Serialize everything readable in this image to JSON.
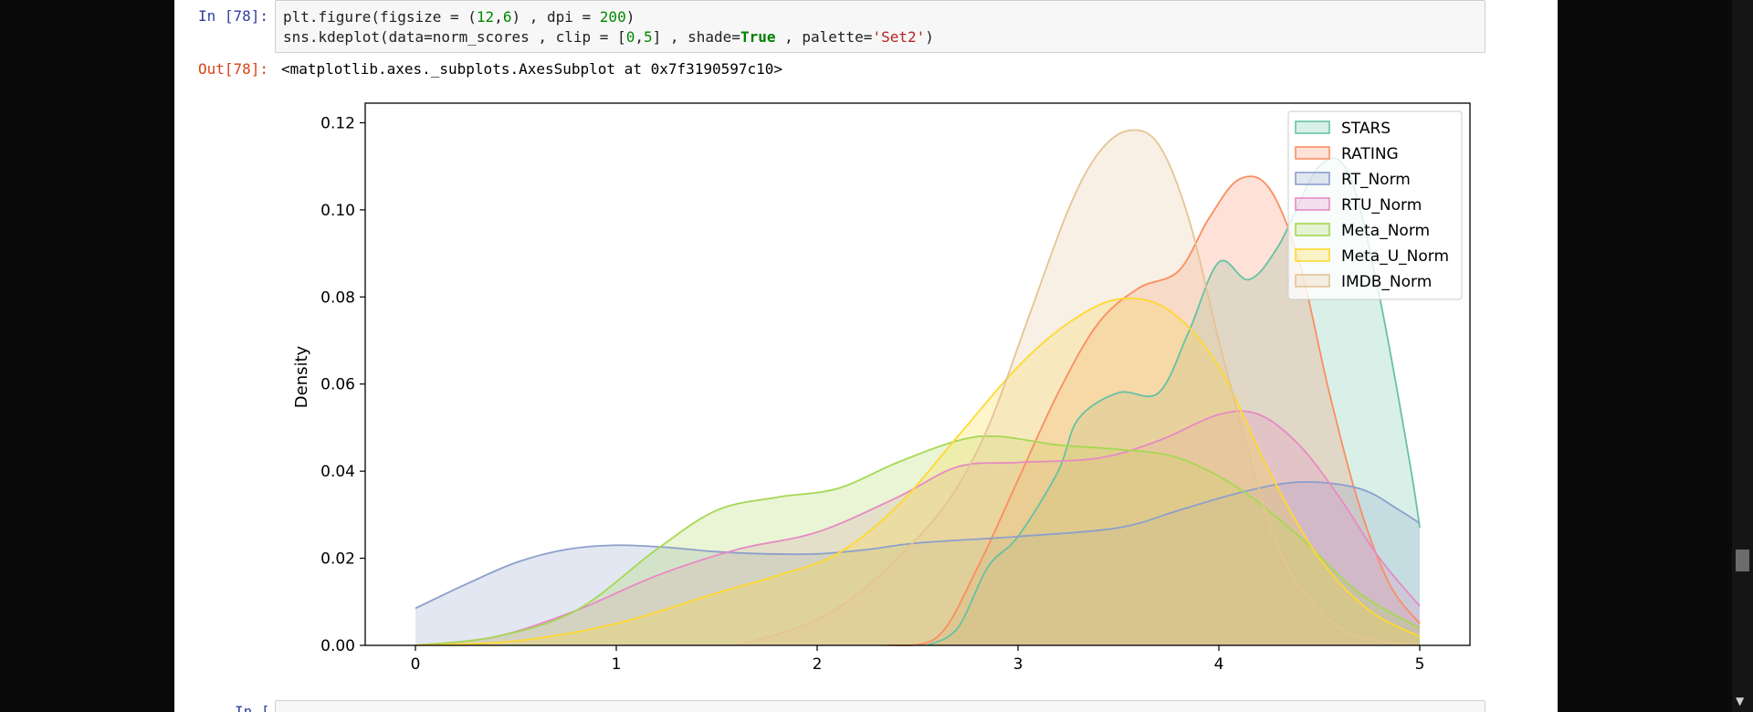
{
  "cell_in": {
    "prompt": "In [78]:",
    "line1": {
      "p1": "plt.figure(figsize = (",
      "n1": "12",
      "p2": ",",
      "n2": "6",
      "p3": ") , dpi = ",
      "n3": "200",
      "p4": ")"
    },
    "line2": {
      "p1": "sns.kdeplot(data=norm_scores , clip = [",
      "n1": "0",
      "p2": ",",
      "n2": "5",
      "p3": "] , shade=",
      "kw": "True",
      "p4": " , palette=",
      "str": "'Set2'",
      "p5": ")"
    }
  },
  "cell_out": {
    "prompt": "Out[78]:",
    "text": "<matplotlib.axes._subplots.AxesSubplot at 0x7f3190597c10>"
  },
  "next_cell": {
    "prompt": "In [ ]:"
  },
  "chart_data": {
    "type": "area",
    "ylabel": "Density",
    "xlim": [
      -0.25,
      5.25
    ],
    "ylim": [
      0,
      0.1245
    ],
    "xticks": [
      "0",
      "1",
      "2",
      "3",
      "4",
      "5"
    ],
    "yticks": [
      "0.00",
      "0.02",
      "0.04",
      "0.06",
      "0.08",
      "0.10",
      "0.12"
    ],
    "legend_position": "top-right",
    "series": [
      {
        "name": "STARS",
        "color": "#66c2a5",
        "points": [
          [
            2.55,
            0
          ],
          [
            2.7,
            0.004
          ],
          [
            2.85,
            0.018
          ],
          [
            3.0,
            0.025
          ],
          [
            3.2,
            0.04
          ],
          [
            3.3,
            0.052
          ],
          [
            3.5,
            0.058
          ],
          [
            3.7,
            0.058
          ],
          [
            3.85,
            0.072
          ],
          [
            4.0,
            0.088
          ],
          [
            4.15,
            0.084
          ],
          [
            4.3,
            0.092
          ],
          [
            4.5,
            0.11
          ],
          [
            4.65,
            0.108
          ],
          [
            4.8,
            0.08
          ],
          [
            4.95,
            0.042
          ],
          [
            5.0,
            0.027
          ]
        ]
      },
      {
        "name": "RATING",
        "color": "#fc8d62",
        "points": [
          [
            2.35,
            0
          ],
          [
            2.6,
            0.002
          ],
          [
            2.8,
            0.018
          ],
          [
            3.0,
            0.038
          ],
          [
            3.2,
            0.058
          ],
          [
            3.4,
            0.074
          ],
          [
            3.6,
            0.082
          ],
          [
            3.8,
            0.086
          ],
          [
            3.95,
            0.098
          ],
          [
            4.1,
            0.107
          ],
          [
            4.25,
            0.105
          ],
          [
            4.4,
            0.088
          ],
          [
            4.55,
            0.058
          ],
          [
            4.7,
            0.032
          ],
          [
            4.85,
            0.014
          ],
          [
            5.0,
            0.005
          ]
        ]
      },
      {
        "name": "RT_Norm",
        "color": "#8da0cb",
        "points": [
          [
            0.0,
            0.0085
          ],
          [
            0.25,
            0.014
          ],
          [
            0.5,
            0.019
          ],
          [
            0.75,
            0.022
          ],
          [
            1.0,
            0.023
          ],
          [
            1.25,
            0.0225
          ],
          [
            1.5,
            0.0215
          ],
          [
            1.75,
            0.021
          ],
          [
            2.0,
            0.021
          ],
          [
            2.25,
            0.022
          ],
          [
            2.5,
            0.0235
          ],
          [
            3.0,
            0.025
          ],
          [
            3.5,
            0.027
          ],
          [
            3.8,
            0.031
          ],
          [
            4.1,
            0.035
          ],
          [
            4.4,
            0.0375
          ],
          [
            4.7,
            0.036
          ],
          [
            4.9,
            0.031
          ],
          [
            5.0,
            0.028
          ]
        ]
      },
      {
        "name": "RTU_Norm",
        "color": "#e78ac3",
        "points": [
          [
            0.0,
            0.0
          ],
          [
            0.4,
            0.002
          ],
          [
            0.8,
            0.008
          ],
          [
            1.2,
            0.016
          ],
          [
            1.6,
            0.022
          ],
          [
            2.0,
            0.026
          ],
          [
            2.4,
            0.034
          ],
          [
            2.7,
            0.041
          ],
          [
            3.0,
            0.042
          ],
          [
            3.4,
            0.043
          ],
          [
            3.7,
            0.047
          ],
          [
            4.0,
            0.053
          ],
          [
            4.2,
            0.053
          ],
          [
            4.4,
            0.046
          ],
          [
            4.6,
            0.034
          ],
          [
            4.8,
            0.02
          ],
          [
            5.0,
            0.009
          ]
        ]
      },
      {
        "name": "Meta_Norm",
        "color": "#a6d854",
        "points": [
          [
            0.0,
            0.0
          ],
          [
            0.4,
            0.002
          ],
          [
            0.8,
            0.008
          ],
          [
            1.2,
            0.022
          ],
          [
            1.5,
            0.031
          ],
          [
            1.8,
            0.034
          ],
          [
            2.1,
            0.036
          ],
          [
            2.4,
            0.042
          ],
          [
            2.7,
            0.047
          ],
          [
            2.9,
            0.048
          ],
          [
            3.2,
            0.046
          ],
          [
            3.5,
            0.045
          ],
          [
            3.8,
            0.043
          ],
          [
            4.1,
            0.036
          ],
          [
            4.4,
            0.025
          ],
          [
            4.7,
            0.012
          ],
          [
            5.0,
            0.004
          ]
        ]
      },
      {
        "name": "Meta_U_Norm",
        "color": "#ffd92f",
        "points": [
          [
            0.0,
            0.0
          ],
          [
            0.5,
            0.001
          ],
          [
            1.0,
            0.005
          ],
          [
            1.5,
            0.012
          ],
          [
            1.8,
            0.016
          ],
          [
            2.1,
            0.021
          ],
          [
            2.4,
            0.032
          ],
          [
            2.7,
            0.048
          ],
          [
            3.0,
            0.064
          ],
          [
            3.25,
            0.074
          ],
          [
            3.5,
            0.0795
          ],
          [
            3.75,
            0.077
          ],
          [
            4.0,
            0.064
          ],
          [
            4.25,
            0.04
          ],
          [
            4.5,
            0.02
          ],
          [
            4.75,
            0.008
          ],
          [
            5.0,
            0.002
          ]
        ]
      },
      {
        "name": "IMDB_Norm",
        "color": "#e5c494",
        "points": [
          [
            1.6,
            0
          ],
          [
            1.9,
            0.004
          ],
          [
            2.15,
            0.01
          ],
          [
            2.4,
            0.02
          ],
          [
            2.65,
            0.033
          ],
          [
            2.85,
            0.05
          ],
          [
            3.05,
            0.075
          ],
          [
            3.25,
            0.1
          ],
          [
            3.4,
            0.113
          ],
          [
            3.55,
            0.1182
          ],
          [
            3.7,
            0.115
          ],
          [
            3.85,
            0.098
          ],
          [
            4.0,
            0.07
          ],
          [
            4.15,
            0.044
          ],
          [
            4.3,
            0.022
          ],
          [
            4.5,
            0.008
          ],
          [
            4.7,
            0.002
          ],
          [
            5.0,
            0.0
          ]
        ]
      }
    ]
  }
}
